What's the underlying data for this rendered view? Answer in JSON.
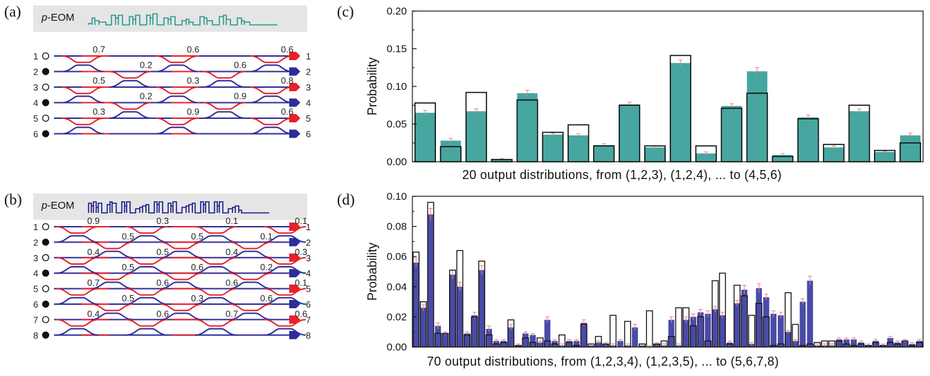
{
  "panels": {
    "a": {
      "tag": "(a)",
      "eom_prefix": "p",
      "eom_suffix": "-EOM",
      "inputs": [
        1,
        2,
        3,
        4,
        5,
        6
      ],
      "inputs_filled": [
        2,
        4,
        6
      ],
      "outputs": [
        1,
        2,
        3,
        4,
        5,
        6
      ],
      "output_colors": [
        "#e8202a",
        "#2d2d9a",
        "#e8202a",
        "#2d2d9a",
        "#e8202a",
        "#2d2d9a"
      ],
      "couplers": [
        {
          "pair": 1,
          "slot": 0,
          "label": "0.7"
        },
        {
          "pair": 1,
          "slot": 2,
          "label": "0.6"
        },
        {
          "pair": 1,
          "slot": 4,
          "label": "0.6"
        },
        {
          "pair": 2,
          "slot": 1,
          "label": "0.2"
        },
        {
          "pair": 2,
          "slot": 3,
          "label": "0.6"
        },
        {
          "pair": 3,
          "slot": 0,
          "label": "0.5"
        },
        {
          "pair": 3,
          "slot": 2,
          "label": "0.3"
        },
        {
          "pair": 3,
          "slot": 4,
          "label": "0.8"
        },
        {
          "pair": 4,
          "slot": 1,
          "label": "0.2"
        },
        {
          "pair": 4,
          "slot": 3,
          "label": "0.9"
        },
        {
          "pair": 5,
          "slot": 0,
          "label": "0.3"
        },
        {
          "pair": 5,
          "slot": 2,
          "label": "0.9"
        },
        {
          "pair": 5,
          "slot": 4,
          "label": "0.6"
        }
      ]
    },
    "b": {
      "tag": "(b)",
      "eom_prefix": "p",
      "eom_suffix": "-EOM",
      "inputs": [
        1,
        2,
        3,
        4,
        5,
        6,
        7,
        8
      ],
      "inputs_filled": [
        2,
        4,
        6,
        8
      ],
      "outputs": [
        1,
        2,
        3,
        4,
        5,
        6,
        7,
        8
      ],
      "output_colors": [
        "#e8202a",
        "#2d2d9a",
        "#e8202a",
        "#2d2d9a",
        "#e8202a",
        "#2d2d9a",
        "#e8202a",
        "#2d2d9a"
      ],
      "couplers": [
        {
          "pair": 1,
          "slot": 0,
          "label": "0.9"
        },
        {
          "pair": 1,
          "slot": 2,
          "label": "0.3"
        },
        {
          "pair": 1,
          "slot": 4,
          "label": "0.1"
        },
        {
          "pair": 1,
          "slot": 6,
          "label": "0.1"
        },
        {
          "pair": 2,
          "slot": 1,
          "label": "0.5"
        },
        {
          "pair": 2,
          "slot": 3,
          "label": "0.5"
        },
        {
          "pair": 2,
          "slot": 5,
          "label": "0.1"
        },
        {
          "pair": 3,
          "slot": 0,
          "label": "0.4"
        },
        {
          "pair": 3,
          "slot": 2,
          "label": "0.5"
        },
        {
          "pair": 3,
          "slot": 4,
          "label": "0.4"
        },
        {
          "pair": 3,
          "slot": 6,
          "label": "0.3"
        },
        {
          "pair": 4,
          "slot": 1,
          "label": "0.5"
        },
        {
          "pair": 4,
          "slot": 3,
          "label": "0.6"
        },
        {
          "pair": 4,
          "slot": 5,
          "label": "0.2"
        },
        {
          "pair": 5,
          "slot": 0,
          "label": "0.7"
        },
        {
          "pair": 5,
          "slot": 2,
          "label": "0.6"
        },
        {
          "pair": 5,
          "slot": 4,
          "label": "0.6"
        },
        {
          "pair": 5,
          "slot": 6,
          "label": "0.1"
        },
        {
          "pair": 6,
          "slot": 1,
          "label": "0.5"
        },
        {
          "pair": 6,
          "slot": 3,
          "label": "0.3"
        },
        {
          "pair": 6,
          "slot": 5,
          "label": "0.6"
        },
        {
          "pair": 7,
          "slot": 0,
          "label": "0.4"
        },
        {
          "pair": 7,
          "slot": 2,
          "label": "0.6"
        },
        {
          "pair": 7,
          "slot": 4,
          "label": "0.7"
        },
        {
          "pair": 7,
          "slot": 6,
          "label": "0.6"
        }
      ]
    },
    "c": {
      "tag": "(c)"
    },
    "d": {
      "tag": "(d)"
    }
  },
  "colors": {
    "red": "#e8202a",
    "blue": "#2d2d9a",
    "teal": "#47a6a0",
    "navy": "#4a4aa8",
    "errorbar": "#f08080",
    "eom_a": "#2a9a90",
    "eom_b": "#1a1a8a"
  },
  "chart_data": [
    {
      "type": "bar",
      "panel": "c",
      "ylabel": "Probability",
      "xlabel": "20 output distributions, from (1,2,3), (1,2,4), ... to (4,5,6)",
      "ylim": [
        0,
        0.2
      ],
      "yticks": [
        "0.00",
        "0.05",
        "0.10",
        "0.15",
        "0.20"
      ],
      "series": [
        {
          "name": "experiment",
          "color": "#47a6a0",
          "values": [
            0.065,
            0.028,
            0.067,
            0.003,
            0.091,
            0.036,
            0.035,
            0.022,
            0.076,
            0.019,
            0.131,
            0.011,
            0.074,
            0.12,
            0.009,
            0.059,
            0.019,
            0.067,
            0.013,
            0.035
          ],
          "errors": [
            0.003,
            0.003,
            0.003,
            0.001,
            0.004,
            0.002,
            0.002,
            0.002,
            0.003,
            0.002,
            0.004,
            0.002,
            0.003,
            0.005,
            0.002,
            0.003,
            0.002,
            0.003,
            0.001,
            0.003
          ]
        },
        {
          "name": "theory",
          "style": "outline",
          "values": [
            0.078,
            0.02,
            0.092,
            0.003,
            0.082,
            0.039,
            0.049,
            0.021,
            0.075,
            0.021,
            0.141,
            0.021,
            0.071,
            0.091,
            0.007,
            0.057,
            0.023,
            0.075,
            0.015,
            0.025
          ]
        }
      ]
    },
    {
      "type": "bar",
      "panel": "d",
      "ylabel": "Probability",
      "xlabel": "70 output distributions, from (1,2,3,4), (1,2,3,5), ... to (5,6,7,8)",
      "ylim": [
        0,
        0.1
      ],
      "yticks": [
        "0.00",
        "0.02",
        "0.04",
        "0.06",
        "0.08",
        "0.10"
      ],
      "series": [
        {
          "name": "experiment",
          "color": "#4a4aa8",
          "values": [
            0.056,
            0.026,
            0.088,
            0.014,
            0.009,
            0.048,
            0.04,
            0.009,
            0.021,
            0.051,
            0.012,
            0.004,
            0.004,
            0.013,
            0.001,
            0.009,
            0.008,
            0.003,
            0.018,
            0.004,
            0.001,
            0.004,
            0.004,
            0.016,
            0.001,
            0.003,
            0.002,
            0.001,
            0.004,
            0.001,
            0.013,
            0.001,
            0.0,
            0.002,
            0.001,
            0.018,
            0.001,
            0.018,
            0.02,
            0.023,
            0.022,
            0.025,
            0.021,
            0.003,
            0.029,
            0.038,
            0.002,
            0.039,
            0.033,
            0.022,
            0.021,
            0.01,
            0.004,
            0.03,
            0.044,
            0.001,
            0.001,
            0.001,
            0.005,
            0.005,
            0.005,
            0.003,
            0.001,
            0.004,
            0.001,
            0.006,
            0.003,
            0.004,
            0.002,
            0.004
          ],
          "errors": [
            0.003,
            0.002,
            0.004,
            0.002,
            0.001,
            0.003,
            0.003,
            0.001,
            0.002,
            0.003,
            0.002,
            0.001,
            0.001,
            0.002,
            0.001,
            0.001,
            0.001,
            0.001,
            0.002,
            0.001,
            0.001,
            0.001,
            0.001,
            0.002,
            0.001,
            0.001,
            0.001,
            0.001,
            0.001,
            0.001,
            0.002,
            0.001,
            0.001,
            0.001,
            0.001,
            0.002,
            0.001,
            0.002,
            0.002,
            0.002,
            0.002,
            0.002,
            0.002,
            0.001,
            0.002,
            0.003,
            0.001,
            0.003,
            0.002,
            0.002,
            0.002,
            0.001,
            0.001,
            0.002,
            0.003,
            0.001,
            0.001,
            0.001,
            0.001,
            0.001,
            0.001,
            0.001,
            0.001,
            0.001,
            0.001,
            0.001,
            0.001,
            0.001,
            0.001,
            0.001
          ]
        },
        {
          "name": "theory",
          "style": "outline",
          "values": [
            0.063,
            0.03,
            0.096,
            0.009,
            0.009,
            0.051,
            0.064,
            0.008,
            0.02,
            0.057,
            0.008,
            0.002,
            0.003,
            0.018,
            0.001,
            0.006,
            0.003,
            0.006,
            0.004,
            0.002,
            0.008,
            0.003,
            0.001,
            0.015,
            0.002,
            0.007,
            0.002,
            0.021,
            0.0,
            0.017,
            0.0,
            0.002,
            0.024,
            0.002,
            0.004,
            0.007,
            0.026,
            0.026,
            0.014,
            0.02,
            0.004,
            0.044,
            0.049,
            0.002,
            0.041,
            0.034,
            0.021,
            0.029,
            0.02,
            0.001,
            0.002,
            0.036,
            0.015,
            0.001,
            0.002,
            0.003,
            0.004,
            0.004,
            0.004,
            0.002,
            0.001,
            0.002,
            0.001,
            0.003,
            0.001,
            0.003,
            0.002,
            0.004,
            0.001,
            0.003
          ]
        }
      ]
    }
  ]
}
